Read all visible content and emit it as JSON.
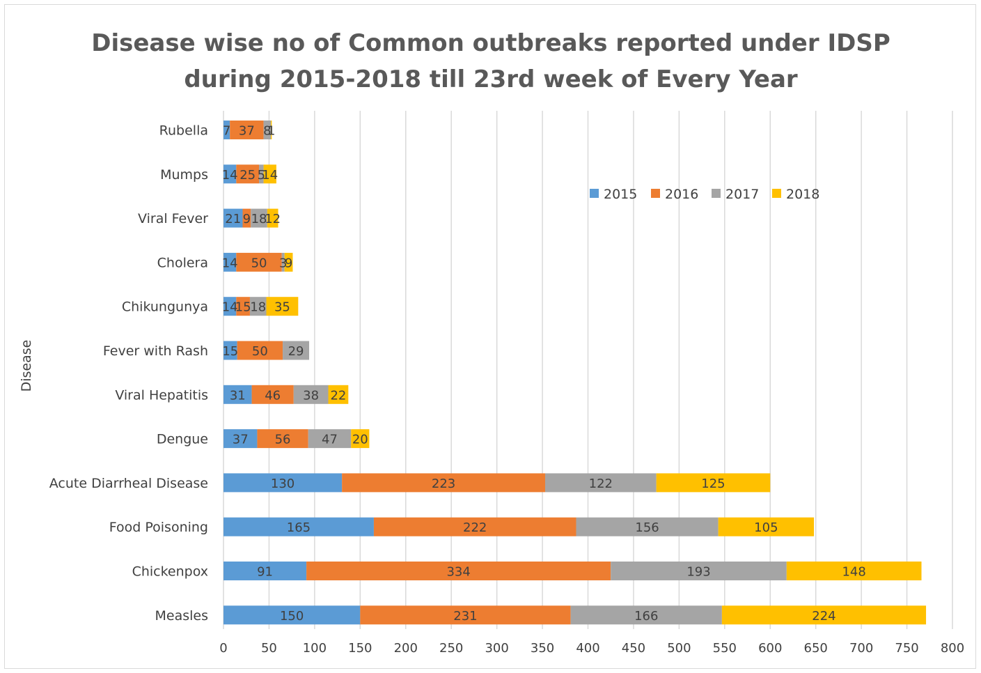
{
  "chart_data": {
    "type": "bar",
    "orientation": "horizontal",
    "stacked": true,
    "title": [
      "Disease wise no of Common outbreaks reported under IDSP",
      "during 2015-2018 till 23rd week of Every Year"
    ],
    "ylabel": "Disease",
    "xlabel": "",
    "xlim": [
      0,
      800
    ],
    "xticks": [
      0,
      50,
      100,
      150,
      200,
      250,
      300,
      350,
      400,
      450,
      500,
      550,
      600,
      650,
      700,
      750,
      800
    ],
    "grid": "vertical",
    "legend": "inside top-right",
    "categories": [
      "Rubella",
      "Mumps",
      "Viral Fever",
      "Cholera",
      "Chikungunya",
      "Fever with Rash",
      "Viral Hepatitis",
      "Dengue",
      "Acute Diarrheal Disease",
      "Food Poisoning",
      "Chickenpox",
      "Measles"
    ],
    "series": [
      {
        "name": "2015",
        "color": "#5b9bd5",
        "values": [
          7,
          14,
          21,
          14,
          14,
          15,
          31,
          37,
          130,
          165,
          91,
          150
        ]
      },
      {
        "name": "2016",
        "color": "#ed7d31",
        "values": [
          37,
          25,
          9,
          50,
          15,
          50,
          46,
          56,
          223,
          222,
          334,
          231
        ]
      },
      {
        "name": "2017",
        "color": "#a5a5a5",
        "values": [
          8,
          5,
          18,
          3,
          18,
          29,
          38,
          47,
          122,
          156,
          193,
          166
        ]
      },
      {
        "name": "2018",
        "color": "#ffc000",
        "values": [
          1,
          14,
          12,
          9,
          35,
          null,
          22,
          20,
          125,
          105,
          148,
          224
        ]
      }
    ]
  }
}
